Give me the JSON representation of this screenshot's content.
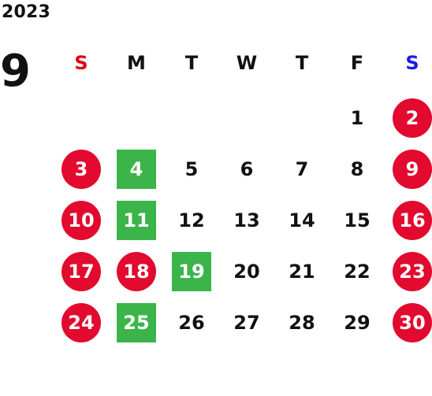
{
  "calendar": {
    "year": "2023",
    "month": "9",
    "weekdays": [
      {
        "label": "S",
        "color": "#e00012"
      },
      {
        "label": "M",
        "color": "#111111"
      },
      {
        "label": "T",
        "color": "#111111"
      },
      {
        "label": "W",
        "color": "#111111"
      },
      {
        "label": "T",
        "color": "#111111"
      },
      {
        "label": "F",
        "color": "#111111"
      },
      {
        "label": "S",
        "color": "#1a1ae6"
      }
    ],
    "colors": {
      "holiday_circle": "#e20a2e",
      "highlight_square": "#3bb54a"
    },
    "weeks": [
      [
        null,
        null,
        null,
        null,
        null,
        {
          "day": "1",
          "type": "normal"
        },
        {
          "day": "2",
          "type": "red"
        }
      ],
      [
        {
          "day": "3",
          "type": "red"
        },
        {
          "day": "4",
          "type": "green"
        },
        {
          "day": "5",
          "type": "normal"
        },
        {
          "day": "6",
          "type": "normal"
        },
        {
          "day": "7",
          "type": "normal"
        },
        {
          "day": "8",
          "type": "normal"
        },
        {
          "day": "9",
          "type": "red"
        }
      ],
      [
        {
          "day": "10",
          "type": "red"
        },
        {
          "day": "11",
          "type": "green"
        },
        {
          "day": "12",
          "type": "normal"
        },
        {
          "day": "13",
          "type": "normal"
        },
        {
          "day": "14",
          "type": "normal"
        },
        {
          "day": "15",
          "type": "normal"
        },
        {
          "day": "16",
          "type": "red"
        }
      ],
      [
        {
          "day": "17",
          "type": "red"
        },
        {
          "day": "18",
          "type": "red"
        },
        {
          "day": "19",
          "type": "green"
        },
        {
          "day": "20",
          "type": "normal"
        },
        {
          "day": "21",
          "type": "normal"
        },
        {
          "day": "22",
          "type": "normal"
        },
        {
          "day": "23",
          "type": "red"
        }
      ],
      [
        {
          "day": "24",
          "type": "red"
        },
        {
          "day": "25",
          "type": "green"
        },
        {
          "day": "26",
          "type": "normal"
        },
        {
          "day": "27",
          "type": "normal"
        },
        {
          "day": "28",
          "type": "normal"
        },
        {
          "day": "29",
          "type": "normal"
        },
        {
          "day": "30",
          "type": "red"
        }
      ]
    ]
  }
}
